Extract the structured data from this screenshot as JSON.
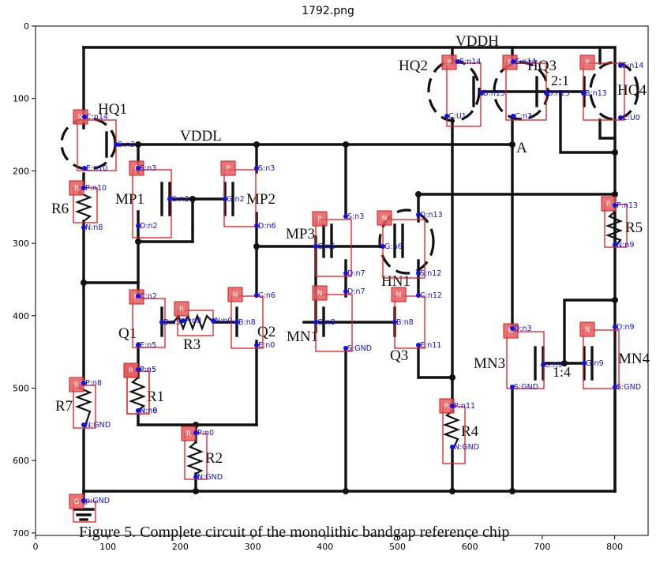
{
  "figure_title": "1792.png",
  "axes": {
    "x_ticks": [
      "0",
      "100",
      "200",
      "300",
      "400",
      "500",
      "600",
      "700",
      "800"
    ],
    "y_ticks": [
      "0",
      "100",
      "200",
      "300",
      "400",
      "500",
      "600",
      "700"
    ]
  },
  "caption": "Figure 5. Complete circuit of the monolithic bandgap reference chip",
  "schematic_labels": {
    "vddh": "VDDH",
    "vddl": "VDDL",
    "a": "A",
    "hq1": "HQ1",
    "hq2": "HQ2",
    "hq3": "HQ3",
    "hq4": "HQ4",
    "ratio_21": "2:1",
    "ratio_14": "1:4",
    "mp1": "MP1",
    "mp2": "MP2",
    "mp3": "MP3",
    "hn1": "HN1",
    "mn1": "MN1",
    "mn3": "MN3",
    "mn4": "MN4",
    "q1": "Q1",
    "q2": "Q2",
    "q3": "Q3",
    "r1": "R1",
    "r2": "R2",
    "r3": "R3",
    "r4": "R4",
    "r5": "R5",
    "r6": "R6",
    "r7": "R7"
  },
  "components": [
    {
      "tag": "N",
      "pins": [
        "C:n14",
        "B:n3",
        "E:n10"
      ]
    },
    {
      "tag": "R",
      "pins": [
        "P:n10",
        "N:n8"
      ]
    },
    {
      "tag": "P",
      "pins": [
        "S:n3",
        "G:n2",
        "D:n2"
      ]
    },
    {
      "tag": "P",
      "pins": [
        "S:n3",
        "G:n2",
        "D:n6"
      ]
    },
    {
      "tag": "N",
      "pins": [
        "C:n2",
        "B:n5",
        "E:n5"
      ]
    },
    {
      "tag": "R",
      "pins": [
        "P:n5",
        "N:n8"
      ]
    },
    {
      "tag": "N",
      "pins": [
        "C:n6",
        "B:n8",
        "E:n0"
      ]
    },
    {
      "tag": "R",
      "pins": [
        "P:n8",
        "N:n0"
      ]
    },
    {
      "tag": "R",
      "pins": [
        "P:n8",
        "N:GND"
      ]
    },
    {
      "tag": "R",
      "pins": [
        "P:n5",
        "N:n0"
      ]
    },
    {
      "tag": "R",
      "pins": [
        "P:n0",
        "N:GND"
      ]
    },
    {
      "tag": "G",
      "pins": [
        "p:GND"
      ]
    },
    {
      "tag": "P",
      "pins": [
        "S:n3",
        "G:n6",
        "D:n7"
      ]
    },
    {
      "tag": "N",
      "pins": [
        "D:n13",
        "G:n6",
        "S:n12"
      ]
    },
    {
      "tag": "N",
      "pins": [
        "D:n7",
        "G:n8",
        "S:GND"
      ]
    },
    {
      "tag": "N",
      "pins": [
        "C:n12",
        "B:n8",
        "E:n11"
      ]
    },
    {
      "tag": "P",
      "pins": [
        "E:n14",
        "B:n13",
        "C:U1"
      ]
    },
    {
      "tag": "P",
      "pins": [
        "E:n14",
        "B:n13",
        "C:n3"
      ]
    },
    {
      "tag": "P",
      "pins": [
        "E:n14",
        "B:n13",
        "C:U0"
      ]
    },
    {
      "tag": "R",
      "pins": [
        "P:n13",
        "N:n9"
      ]
    },
    {
      "tag": "R",
      "pins": [
        "P:n11",
        "N:GND"
      ]
    },
    {
      "tag": "N",
      "pins": [
        "D:n3",
        "G:n9",
        "S:GND"
      ]
    },
    {
      "tag": "N",
      "pins": [
        "D:n9",
        "G:n9",
        "S:GND"
      ]
    }
  ]
}
